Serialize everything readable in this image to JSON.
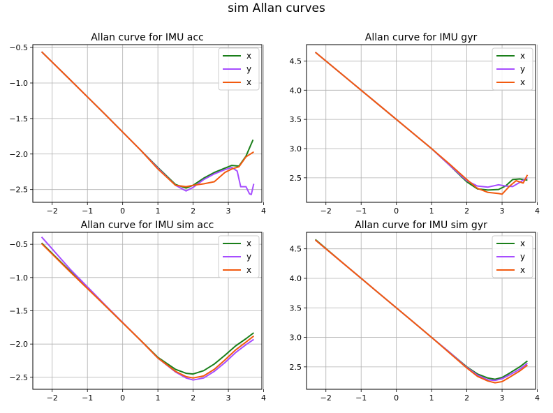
{
  "figure": {
    "suptitle": "sim Allan curves"
  },
  "colors": {
    "green": "#1a7f1a",
    "purple": "#a64dff",
    "orange": "#f25a0f",
    "grid": "#b0b0b0"
  },
  "chart_data": [
    {
      "type": "line",
      "title": "Allan curve for IMU acc",
      "xlabel": "",
      "ylabel": "",
      "xlim": [
        -2.55,
        3.95
      ],
      "ylim": [
        -2.68,
        -0.46
      ],
      "xticks": [
        -2,
        -1,
        0,
        1,
        2,
        3,
        4
      ],
      "yticks": [
        -2.5,
        -2.0,
        -1.5,
        -1.0,
        -0.5
      ],
      "grid": true,
      "legend": "top-right",
      "series": [
        {
          "name": "x",
          "color": "green",
          "x": [
            -2.3,
            -1.5,
            -0.5,
            0.5,
            1.0,
            1.5,
            1.8,
            2.0,
            2.3,
            2.6,
            2.9,
            3.1,
            3.3,
            3.5,
            3.7
          ],
          "y": [
            -0.56,
            -0.95,
            -1.44,
            -1.94,
            -2.19,
            -2.43,
            -2.48,
            -2.44,
            -2.34,
            -2.26,
            -2.2,
            -2.16,
            -2.17,
            -2.03,
            -1.8
          ]
        },
        {
          "name": "y",
          "color": "purple",
          "x": [
            -2.3,
            -1.5,
            -0.5,
            0.5,
            1.0,
            1.5,
            1.8,
            2.0,
            2.3,
            2.6,
            2.9,
            3.1,
            3.25,
            3.35,
            3.5,
            3.6,
            3.65,
            3.72
          ],
          "y": [
            -0.56,
            -0.95,
            -1.44,
            -1.94,
            -2.2,
            -2.44,
            -2.52,
            -2.47,
            -2.36,
            -2.28,
            -2.22,
            -2.19,
            -2.24,
            -2.46,
            -2.46,
            -2.56,
            -2.57,
            -2.42
          ]
        },
        {
          "name": "x",
          "color": "orange",
          "x": [
            -2.3,
            -1.5,
            -0.5,
            0.5,
            1.0,
            1.5,
            1.8,
            2.0,
            2.3,
            2.6,
            2.9,
            3.1,
            3.3,
            3.5,
            3.72
          ],
          "y": [
            -0.56,
            -0.95,
            -1.44,
            -1.94,
            -2.21,
            -2.44,
            -2.46,
            -2.44,
            -2.42,
            -2.39,
            -2.26,
            -2.21,
            -2.18,
            -2.04,
            -1.97
          ]
        }
      ]
    },
    {
      "type": "line",
      "title": "Allan curve for IMU gyr",
      "xlabel": "",
      "ylabel": "",
      "xlim": [
        -2.55,
        3.95
      ],
      "ylim": [
        2.08,
        4.78
      ],
      "xticks": [
        -2,
        -1,
        0,
        1,
        2,
        3,
        4
      ],
      "yticks": [
        2.5,
        3.0,
        3.5,
        4.0,
        4.5
      ],
      "grid": true,
      "legend": "top-right",
      "series": [
        {
          "name": "x",
          "color": "green",
          "x": [
            -2.3,
            -1.5,
            -0.5,
            0.5,
            1.0,
            1.5,
            2.0,
            2.3,
            2.6,
            2.9,
            3.1,
            3.3,
            3.5,
            3.72
          ],
          "y": [
            4.65,
            4.25,
            3.75,
            3.25,
            3.0,
            2.72,
            2.43,
            2.31,
            2.29,
            2.3,
            2.36,
            2.47,
            2.48,
            2.46
          ]
        },
        {
          "name": "y",
          "color": "purple",
          "x": [
            -2.3,
            -1.5,
            -0.5,
            0.5,
            1.0,
            1.5,
            2.0,
            2.3,
            2.6,
            2.9,
            3.1,
            3.3,
            3.5,
            3.6,
            3.72
          ],
          "y": [
            4.65,
            4.25,
            3.75,
            3.25,
            3.0,
            2.72,
            2.45,
            2.36,
            2.34,
            2.38,
            2.36,
            2.35,
            2.42,
            2.46,
            2.5
          ]
        },
        {
          "name": "x",
          "color": "orange",
          "x": [
            -2.3,
            -1.5,
            -0.5,
            0.5,
            1.0,
            1.5,
            2.0,
            2.3,
            2.6,
            2.9,
            3.0,
            3.2,
            3.4,
            3.6,
            3.72
          ],
          "y": [
            4.65,
            4.25,
            3.75,
            3.25,
            3.0,
            2.74,
            2.47,
            2.32,
            2.25,
            2.23,
            2.22,
            2.35,
            2.45,
            2.41,
            2.55
          ]
        }
      ]
    },
    {
      "type": "line",
      "title": "Allan curve for IMU sim acc",
      "xlabel": "",
      "ylabel": "",
      "xlim": [
        -2.55,
        3.95
      ],
      "ylim": [
        -2.68,
        -0.32
      ],
      "xticks": [
        -2,
        -1,
        0,
        1,
        2,
        3,
        4
      ],
      "yticks": [
        -2.5,
        -2.0,
        -1.5,
        -1.0,
        -0.5
      ],
      "grid": true,
      "legend": "top-right",
      "series": [
        {
          "name": "x",
          "color": "green",
          "x": [
            -2.3,
            -1.5,
            -0.5,
            0.5,
            1.0,
            1.5,
            1.8,
            2.0,
            2.3,
            2.6,
            2.9,
            3.2,
            3.5,
            3.72
          ],
          "y": [
            -0.48,
            -0.9,
            -1.42,
            -1.94,
            -2.2,
            -2.38,
            -2.44,
            -2.45,
            -2.4,
            -2.3,
            -2.17,
            -2.03,
            -1.92,
            -1.83
          ]
        },
        {
          "name": "y",
          "color": "purple",
          "x": [
            -2.3,
            -1.5,
            -0.5,
            0.5,
            1.0,
            1.5,
            1.8,
            2.0,
            2.3,
            2.6,
            2.9,
            3.2,
            3.5,
            3.72
          ],
          "y": [
            -0.39,
            -0.87,
            -1.41,
            -1.94,
            -2.21,
            -2.42,
            -2.51,
            -2.54,
            -2.51,
            -2.41,
            -2.28,
            -2.13,
            -2.01,
            -1.93
          ]
        },
        {
          "name": "x",
          "color": "orange",
          "x": [
            -2.3,
            -1.5,
            -0.5,
            0.5,
            1.0,
            1.5,
            1.8,
            2.0,
            2.3,
            2.6,
            2.9,
            3.2,
            3.5,
            3.72
          ],
          "y": [
            -0.49,
            -0.91,
            -1.42,
            -1.94,
            -2.21,
            -2.41,
            -2.49,
            -2.51,
            -2.48,
            -2.38,
            -2.24,
            -2.09,
            -1.97,
            -1.88
          ]
        }
      ]
    },
    {
      "type": "line",
      "title": "Allan curve for IMU sim gyr",
      "xlabel": "",
      "ylabel": "",
      "xlim": [
        -2.55,
        3.95
      ],
      "ylim": [
        2.12,
        4.78
      ],
      "xticks": [
        -2,
        -1,
        0,
        1,
        2,
        3,
        4
      ],
      "yticks": [
        2.5,
        3.0,
        3.5,
        4.0,
        4.5
      ],
      "grid": true,
      "legend": "top-right",
      "series": [
        {
          "name": "x",
          "color": "green",
          "x": [
            -2.3,
            -1.5,
            -0.5,
            0.5,
            1.0,
            1.5,
            2.0,
            2.3,
            2.6,
            2.8,
            3.0,
            3.2,
            3.5,
            3.72
          ],
          "y": [
            4.66,
            4.25,
            3.75,
            3.25,
            3.0,
            2.75,
            2.5,
            2.38,
            2.31,
            2.29,
            2.32,
            2.39,
            2.5,
            2.6
          ]
        },
        {
          "name": "y",
          "color": "purple",
          "x": [
            -2.3,
            -1.5,
            -0.5,
            0.5,
            1.0,
            1.5,
            2.0,
            2.3,
            2.6,
            2.8,
            3.0,
            3.2,
            3.5,
            3.72
          ],
          "y": [
            4.65,
            4.25,
            3.75,
            3.25,
            3.0,
            2.75,
            2.49,
            2.36,
            2.28,
            2.27,
            2.3,
            2.36,
            2.46,
            2.56
          ]
        },
        {
          "name": "x",
          "color": "orange",
          "x": [
            -2.3,
            -1.5,
            -0.5,
            0.5,
            1.0,
            1.5,
            2.0,
            2.3,
            2.6,
            2.8,
            3.0,
            3.2,
            3.5,
            3.72
          ],
          "y": [
            4.65,
            4.25,
            3.75,
            3.25,
            3.0,
            2.74,
            2.48,
            2.34,
            2.26,
            2.23,
            2.25,
            2.32,
            2.43,
            2.53
          ]
        }
      ]
    }
  ]
}
